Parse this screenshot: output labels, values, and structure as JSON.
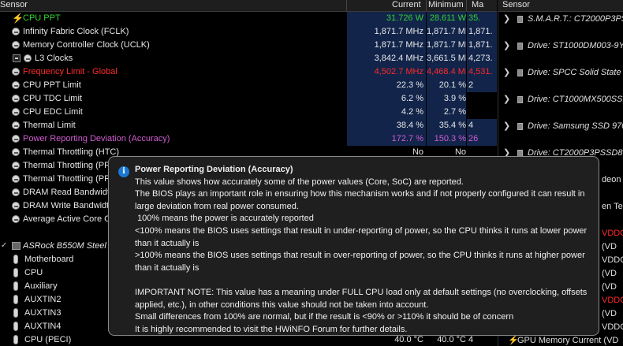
{
  "header": {
    "sensor": "Sensor",
    "current": "Current",
    "minimum": "Minimum",
    "maximum": "Ma",
    "right_sensor": "Sensor"
  },
  "rows": [
    {
      "name": "CPU PPT",
      "cur": "31.726 W",
      "min": "28.611 W",
      "max": "35.",
      "color": "green",
      "icon": "lightning-icon"
    },
    {
      "name": "Infinity Fabric Clock (FCLK)",
      "cur": "1,871.7 MHz",
      "min": "1,871.7 MHz",
      "max": "1,871.",
      "color": "",
      "icon": "clock-icon"
    },
    {
      "name": "Memory Controller Clock (UCLK)",
      "cur": "1,871.7 MHz",
      "min": "1,871.7 MHz",
      "max": "1,871.",
      "color": "",
      "icon": "clock-icon"
    },
    {
      "name": "L3 Clocks",
      "cur": "3,842.4 MHz",
      "min": "3,661.5 MHz",
      "max": "4,273.",
      "color": "",
      "icon": "clock-icon",
      "indent": true
    },
    {
      "name": "Frequency Limit - Global",
      "cur": "4,502.7 MHz",
      "min": "4,468.4 MHz",
      "max": "4,531.",
      "color": "red",
      "icon": "clock-icon"
    },
    {
      "name": "CPU PPT Limit",
      "cur": "22.3 %",
      "min": "20.1 %",
      "max": "2",
      "color": "",
      "icon": "clock-icon"
    },
    {
      "name": "CPU TDC Limit",
      "cur": "6.2 %",
      "min": "3.9 %",
      "max": "",
      "color": "",
      "icon": "clock-icon"
    },
    {
      "name": "CPU EDC Limit",
      "cur": "4.2 %",
      "min": "2.7 %",
      "max": "",
      "color": "",
      "icon": "clock-icon"
    },
    {
      "name": "Thermal Limit",
      "cur": "38.4 %",
      "min": "35.4 %",
      "max": "4",
      "color": "",
      "icon": "clock-icon"
    },
    {
      "name": "Power Reporting Deviation (Accuracy)",
      "cur": "172.7 %",
      "min": "150.3 %",
      "max": "26",
      "color": "purple",
      "icon": "clock-icon"
    },
    {
      "name": "Thermal Throttling (HTC)",
      "cur": "No",
      "min": "No",
      "max": "",
      "color": "",
      "icon": "clock-icon"
    },
    {
      "name": "Thermal Throttling (PRC",
      "cur": "",
      "min": "",
      "max": "",
      "color": "",
      "icon": "clock-icon"
    },
    {
      "name": "Thermal Throttling (PRC",
      "cur": "",
      "min": "",
      "max": "",
      "color": "",
      "icon": "clock-icon"
    },
    {
      "name": "DRAM Read Bandwidth",
      "cur": "",
      "min": "",
      "max": "",
      "color": "",
      "icon": "clock-icon"
    },
    {
      "name": "DRAM Write Bandwidth",
      "cur": "",
      "min": "",
      "max": "",
      "color": "",
      "icon": "clock-icon"
    },
    {
      "name": "Average Active Core C",
      "cur": "",
      "min": "",
      "max": "",
      "color": "",
      "icon": "clock-icon"
    },
    {
      "name": "",
      "cur": "",
      "min": "",
      "max": "",
      "color": "",
      "icon": ""
    },
    {
      "name": "ASRock B550M Steel Le",
      "cur": "",
      "min": "",
      "max": "",
      "color": "",
      "icon": "chip-icon",
      "group": true
    },
    {
      "name": "Motherboard",
      "cur": "",
      "min": "",
      "max": "",
      "color": "",
      "icon": "thermometer-icon"
    },
    {
      "name": "CPU",
      "cur": "",
      "min": "",
      "max": "",
      "color": "",
      "icon": "thermometer-icon"
    },
    {
      "name": "Auxiliary",
      "cur": "",
      "min": "",
      "max": "",
      "color": "",
      "icon": "thermometer-icon"
    },
    {
      "name": "AUXTIN2",
      "cur": "",
      "min": "",
      "max": "",
      "color": "",
      "icon": "thermometer-icon"
    },
    {
      "name": "AUXTIN3",
      "cur": "",
      "min": "",
      "max": "",
      "color": "",
      "icon": "thermometer-icon"
    },
    {
      "name": "AUXTIN4",
      "cur": "",
      "min": "",
      "max": "",
      "color": "",
      "icon": "thermometer-icon"
    },
    {
      "name": "CPU (PECI)",
      "cur": "40.0 °C",
      "min": "40.0 °C",
      "max": "4",
      "color": "",
      "icon": "thermometer-icon"
    }
  ],
  "right_rows": [
    {
      "text": "S.M.A.R.T.: CT2000P3PSS",
      "chev": true,
      "hdd": true,
      "row": 0
    },
    {
      "text": "Drive: ST1000DM003-9YN",
      "chev": true,
      "hdd": true,
      "row": 2
    },
    {
      "text": "Drive: SPCC Solid State D",
      "chev": true,
      "hdd": true,
      "row": 4
    },
    {
      "text": "Drive: CT1000MX500SSD",
      "chev": true,
      "hdd": true,
      "row": 6
    },
    {
      "text": "Drive: Samsung SSD 970",
      "chev": true,
      "hdd": true,
      "row": 8
    },
    {
      "text": "Drive: CT2000P3PSSD8 (",
      "chev": true,
      "hdd": true,
      "row": 10
    },
    {
      "text": "deon I",
      "chev": false,
      "hdd": false,
      "row": 12
    },
    {
      "text": "en Te",
      "chev": false,
      "hdd": false,
      "row": 14
    },
    {
      "text": "VDDC",
      "chev": false,
      "hdd": false,
      "row": 16,
      "color": "red"
    },
    {
      "text": "(VD",
      "chev": false,
      "hdd": false,
      "row": 17
    },
    {
      "text": "VDDCR",
      "chev": false,
      "hdd": false,
      "row": 18
    },
    {
      "text": "(VD",
      "chev": false,
      "hdd": false,
      "row": 19
    },
    {
      "text": "(VD",
      "chev": false,
      "hdd": false,
      "row": 20
    },
    {
      "text": "VDDC",
      "chev": false,
      "hdd": false,
      "row": 21,
      "color": "red"
    },
    {
      "text": "(VD",
      "chev": false,
      "hdd": false,
      "row": 22
    },
    {
      "text": "VDDCR",
      "chev": false,
      "hdd": false,
      "row": 23
    },
    {
      "text": "GPU Memory Current (VD",
      "chev": false,
      "hdd": false,
      "row": 24
    }
  ],
  "tooltip": {
    "title": "Power Reporting Deviation (Accuracy)",
    "lines": [
      "This value shows how accurately some of the power values (Core, SoC) are reported.",
      "The BIOS plays an important role in ensuring how this mechanism works and if not properly configured it can result in large deviation from real power consumed.",
      " 100% means the power is accurately reported",
      "<100% means the BIOS uses settings that result in under-reporting of power, so the CPU thinks it runs at lower power than it actually is",
      ">100% means the BIOS uses settings that result in over-reporting of power, so the CPU thinks it runs at higher power than it actually is",
      "",
      "IMPORTANT NOTE: This value has a meaning under FULL CPU load only at default settings (no overclocking, offsets applied, etc.), in other conditions this value should not be taken into account.",
      "Small differences from 100% are normal, but if the result is <90% or >110% it should be of concern",
      "It is highly recommended to visit the HWiNFO Forum for further details."
    ]
  },
  "colors": {
    "green": "#33d233",
    "red": "#ff2a2a",
    "purple": "#d05cd0",
    "highlight": "#12244a"
  }
}
